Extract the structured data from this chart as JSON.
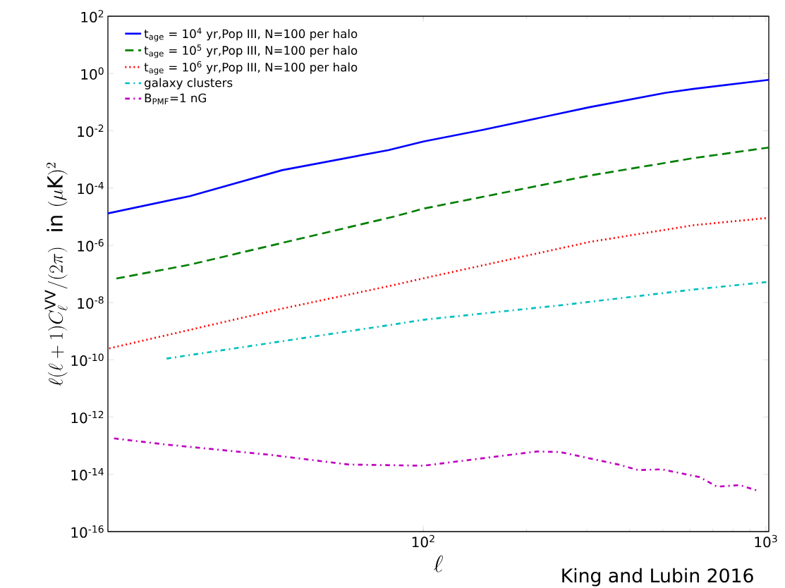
{
  "chart_data": {
    "type": "line",
    "xlabel": "\\ell",
    "ylabel": "\\ell(\\ell+1)C_\\ell^{\\rm VV}/(2\\pi)\\ \\ {\\rm in}\\ (\\mu{\\rm K})^2",
    "log": "xy",
    "xlim": [
      12,
      1020
    ],
    "ylim": [
      1e-16,
      100
    ],
    "xticks": [
      {
        "value": 100,
        "label": "10$^{2}$"
      },
      {
        "value": 1000,
        "label": "10$^{3}$"
      }
    ],
    "yticks": [
      {
        "value": 100,
        "label": "10$^{2}$"
      },
      {
        "value": 1,
        "label": "10$^{0}$"
      },
      {
        "value": 0.01,
        "label": "10$^{-2}$"
      },
      {
        "value": 0.0001,
        "label": "10$^{-4}$"
      },
      {
        "value": 1e-06,
        "label": "10$^{-6}$"
      },
      {
        "value": 1e-08,
        "label": "10$^{-8}$"
      },
      {
        "value": 1e-10,
        "label": "10$^{-10}$"
      },
      {
        "value": 1e-12,
        "label": "10$^{-12}$"
      },
      {
        "value": 1e-14,
        "label": "10$^{-14}$"
      },
      {
        "value": 1e-16,
        "label": "10$^{-16}$"
      }
    ],
    "legend": "top left",
    "grid": false,
    "annotations": [
      "King and Lubin 2016"
    ],
    "series": [
      {
        "name": "t$_{age}$ = 10$^{4}$ yr,Pop III, N=100 per halo",
        "color": "#0000ff",
        "line_style": "solid",
        "x": [
          12,
          20.8,
          38.7,
          79,
          100,
          149,
          305,
          508,
          614,
          1020
        ],
        "values": [
          1.3e-05,
          5.2e-05,
          0.00042,
          0.0021,
          0.0042,
          0.0107,
          0.066,
          0.21,
          0.29,
          0.6
        ]
      },
      {
        "name": "t$_{age}$ = 10$^{5}$ yr,Pop III, N=100 per halo",
        "color": "#007f00",
        "line_style": "dashed",
        "x": [
          12.7,
          20.8,
          82,
          100,
          305,
          614,
          1020
        ],
        "values": [
          6.9e-08,
          2.1e-07,
          1e-05,
          1.9e-05,
          0.00027,
          0.0011,
          0.0026
        ]
      },
      {
        "name": "t$_{age}$ = 10$^{6}$ yr,Pop III, N=100 per halo",
        "color": "#ff0000",
        "line_style": "dotted",
        "x": [
          12.1,
          38.4,
          79,
          100,
          305,
          614,
          1020
        ],
        "values": [
          2.5e-10,
          6e-09,
          3.7e-08,
          7e-08,
          1.3e-06,
          5e-06,
          9.1e-06
        ]
      },
      {
        "name": "galaxy clusters",
        "color": "#00bfbf",
        "line_style": "dashdot",
        "x": [
          17.8,
          81.5,
          100,
          251,
          608,
          1020
        ],
        "values": [
          1.1e-10,
          1.7e-09,
          2.5e-09,
          8e-09,
          2.8e-08,
          5.3e-08
        ]
      },
      {
        "name": "B$_{PMF}$=1 nG",
        "color": "#bf00bf",
        "line_style": "dashdot",
        "x": [
          12.5,
          17.7,
          35.7,
          60.5,
          100,
          215,
          251,
          371,
          425,
          496,
          641,
          721,
          839,
          955
        ],
        "values": [
          1.8e-13,
          1.1e-13,
          4.8e-14,
          2.2e-14,
          2e-14,
          6.3e-14,
          6e-14,
          2.2e-14,
          1.4e-14,
          1.5e-14,
          8e-15,
          3.7e-15,
          4.2e-15,
          2.6e-15
        ]
      }
    ]
  }
}
